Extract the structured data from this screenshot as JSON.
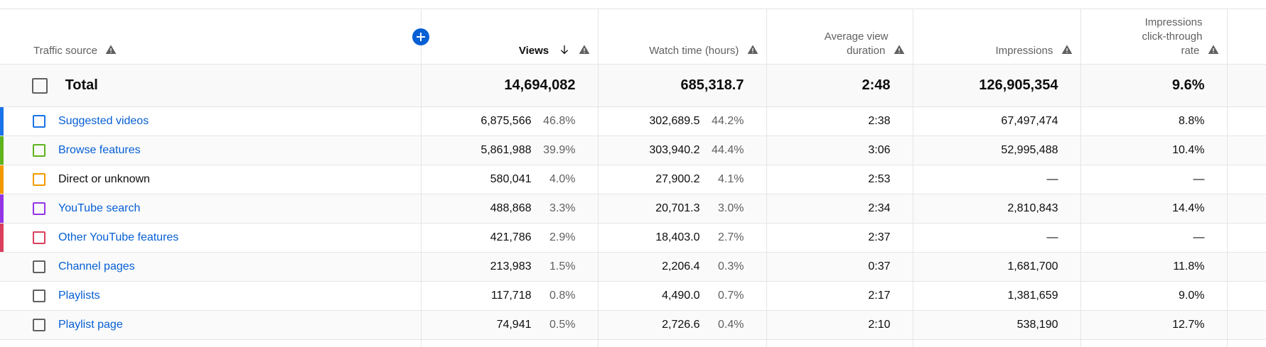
{
  "headers": {
    "traffic_source": "Traffic source",
    "views": "Views",
    "watch_time": "Watch time (hours)",
    "avg_view_duration_line1": "Average view",
    "avg_view_duration_line2": "duration",
    "impressions": "Impressions",
    "ctr_line1": "Impressions",
    "ctr_line2": "click-through",
    "ctr_line3": "rate"
  },
  "icons": {
    "warning": "warning-triangle-icon",
    "sort": "arrow-down-icon",
    "add": "add-circle-icon",
    "checkbox": "checkbox-icon"
  },
  "colors": {
    "accent": "#065fd4",
    "header_text": "#606060",
    "grid": "#e5e5e5"
  },
  "total": {
    "label": "Total",
    "views": "14,694,082",
    "watch_time": "685,318.7",
    "avg_view_duration": "2:48",
    "impressions": "126,905,354",
    "ctr": "9.6%"
  },
  "rows": [
    {
      "label": "Suggested videos",
      "link": true,
      "color": "#1a73e8",
      "views": "6,875,566",
      "views_pct": "46.8%",
      "watch_time": "302,689.5",
      "watch_pct": "44.2%",
      "avg_view_duration": "2:38",
      "impressions": "67,497,474",
      "ctr": "8.8%"
    },
    {
      "label": "Browse features",
      "link": true,
      "color": "#5fb31e",
      "views": "5,861,988",
      "views_pct": "39.9%",
      "watch_time": "303,940.2",
      "watch_pct": "44.4%",
      "avg_view_duration": "3:06",
      "impressions": "52,995,488",
      "ctr": "10.4%"
    },
    {
      "label": "Direct or unknown",
      "link": false,
      "color": "#f29900",
      "views": "580,041",
      "views_pct": "4.0%",
      "watch_time": "27,900.2",
      "watch_pct": "4.1%",
      "avg_view_duration": "2:53",
      "impressions": "—",
      "ctr": "—"
    },
    {
      "label": "YouTube search",
      "link": true,
      "color": "#9334e6",
      "views": "488,868",
      "views_pct": "3.3%",
      "watch_time": "20,701.3",
      "watch_pct": "3.0%",
      "avg_view_duration": "2:34",
      "impressions": "2,810,843",
      "ctr": "14.4%"
    },
    {
      "label": "Other YouTube features",
      "link": true,
      "color": "#d93f5c",
      "views": "421,786",
      "views_pct": "2.9%",
      "watch_time": "18,403.0",
      "watch_pct": "2.7%",
      "avg_view_duration": "2:37",
      "impressions": "—",
      "ctr": "—"
    },
    {
      "label": "Channel pages",
      "link": true,
      "color": "",
      "views": "213,983",
      "views_pct": "1.5%",
      "watch_time": "2,206.4",
      "watch_pct": "0.3%",
      "avg_view_duration": "0:37",
      "impressions": "1,681,700",
      "ctr": "11.8%"
    },
    {
      "label": "Playlists",
      "link": true,
      "color": "",
      "views": "117,718",
      "views_pct": "0.8%",
      "watch_time": "4,490.0",
      "watch_pct": "0.7%",
      "avg_view_duration": "2:17",
      "impressions": "1,381,659",
      "ctr": "9.0%"
    },
    {
      "label": "Playlist page",
      "link": true,
      "color": "",
      "views": "74,941",
      "views_pct": "0.5%",
      "watch_time": "2,726.6",
      "watch_pct": "0.4%",
      "avg_view_duration": "2:10",
      "impressions": "538,190",
      "ctr": "12.7%"
    }
  ]
}
